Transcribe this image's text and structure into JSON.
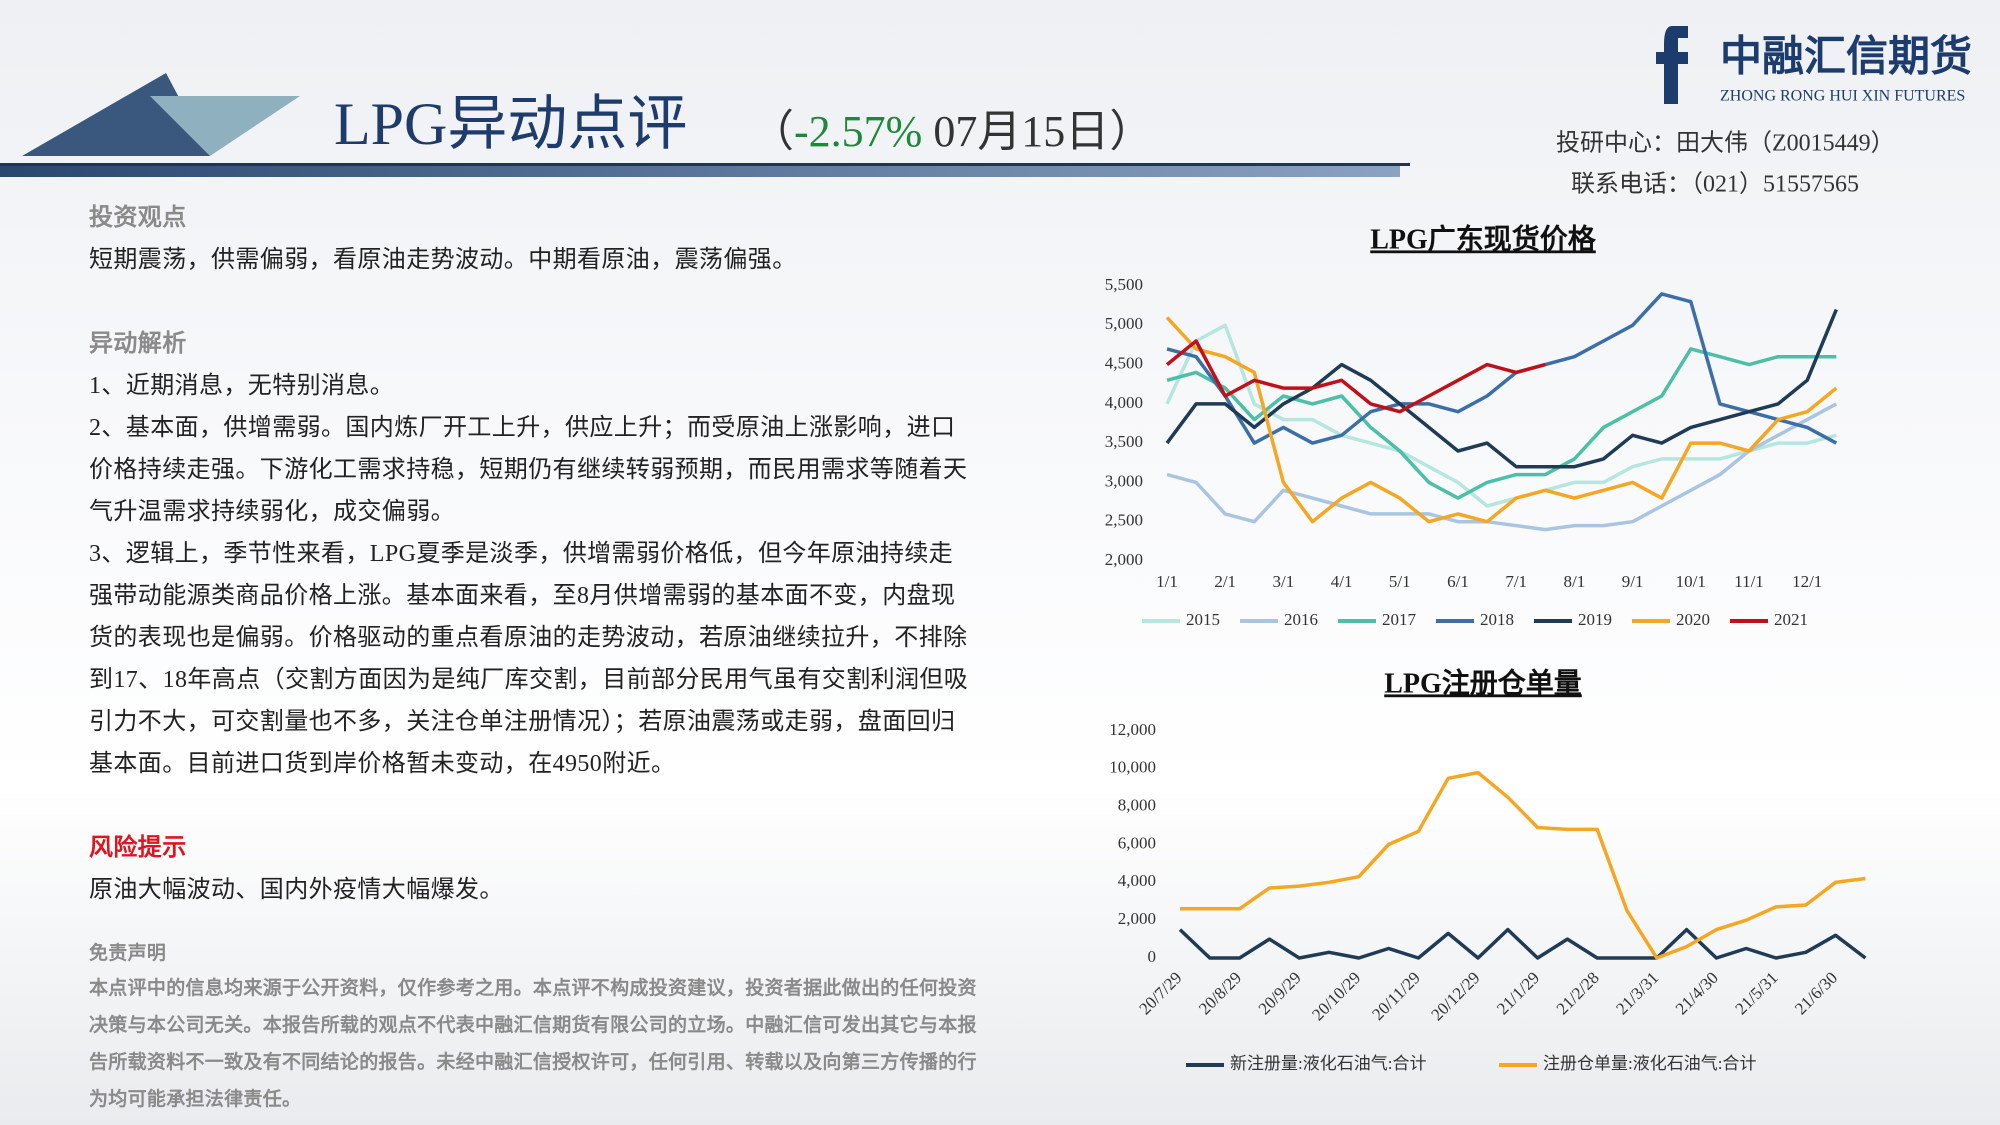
{
  "header": {
    "title": "LPG异动点评",
    "subtitle_parts": [
      "（",
      "-2.57%",
      " 07月15日",
      "）"
    ],
    "analyst": "投研中心：田大伟（Z0015449）",
    "phone": "联系电话：（021）51557565"
  },
  "logo": {
    "name": "中融汇信期货",
    "english": "ZHONG RONG HUI XIN FUTURES"
  },
  "sections": [
    {
      "heading": "投资观点",
      "paragraphs": [
        "短期震荡，供需偏弱，看原油走势波动。中期看原油，震荡偏强。"
      ]
    },
    {
      "heading": "异动解析",
      "paragraphs": [
        "1、近期消息，无特别消息。",
        "2、基本面，供增需弱。国内炼厂开工上升，供应上升；而受原油上涨影响，进口价格持续走强。下游化工需求持稳，短期仍有继续转弱预期，而民用需求等随着天气升温需求持续弱化，成交偏弱。",
        "3、逻辑上，季节性来看，LPG夏季是淡季，供增需弱价格低，但今年原油持续走强带动能源类商品价格上涨。基本面来看，至8月供增需弱的基本面不变，内盘现货的表现也是偏弱。价格驱动的重点看原油的走势波动，若原油继续拉升，不排除到17、18年高点（交割方面因为是纯厂库交割，目前部分民用气虽有交割利润但吸引力不大，可交割量也不多，关注仓单注册情况）；若原油震荡或走弱，盘面回归基本面。目前进口货到岸价格暂未变动，在4950附近。"
      ]
    },
    {
      "heading": "风险提示",
      "paragraphs": [
        "原油大幅波动、国内外疫情大幅爆发。"
      ]
    }
  ],
  "disclaimer": {
    "heading": "免责声明",
    "text": "本点评中的信息均来源于公开资料，仅作参考之用。本点评不构成投资建议，投资者据此做出的任何投资决策与本公司无关。本报告所载的观点不代表中融汇信期货有限公司的立场。中融汇信可发出其它与本报告所载资料不一致及有不同结论的报告。未经中融汇信授权许可，任何引用、转载以及向第三方传播的行为均可能承担法律责任。"
  },
  "chart_data": [
    {
      "type": "line",
      "title": "LPG广东现货价格",
      "categories": [
        "1/1",
        null,
        "2/1",
        null,
        "3/1",
        null,
        "4/1",
        null,
        "5/1",
        null,
        "6/1",
        null,
        "7/1",
        null,
        "8/1",
        null,
        "9/1",
        null,
        "10/1",
        null,
        "11/1",
        null,
        "12/1",
        null
      ],
      "ylim": [
        2000,
        5500
      ],
      "yticks": [
        {
          "value": 2000,
          "label": "2,000"
        },
        {
          "value": 2500,
          "label": "2,500"
        },
        {
          "value": 3000,
          "label": "3,000"
        },
        {
          "value": 3500,
          "label": "3,500"
        },
        {
          "value": 4000,
          "label": "4,000"
        },
        {
          "value": 4500,
          "label": "4,500"
        },
        {
          "value": 5000,
          "label": "5,000"
        },
        {
          "value": 5500,
          "label": "5,500"
        }
      ],
      "series": [
        {
          "name": "2015",
          "color": "#b5e6df",
          "values": [
            4000,
            4800,
            5000,
            4000,
            3800,
            3800,
            3600,
            3500,
            3400,
            3200,
            3000,
            2700,
            2800,
            2900,
            3000,
            3000,
            3200,
            3300,
            3300,
            3300,
            3400,
            3500,
            3500,
            3600
          ]
        },
        {
          "name": "2016",
          "color": "#a9c5e2",
          "values": [
            3100,
            3000,
            2600,
            2500,
            2900,
            2800,
            2700,
            2600,
            2600,
            2600,
            2500,
            2500,
            2450,
            2400,
            2450,
            2450,
            2500,
            2700,
            2900,
            3100,
            3400,
            3600,
            3800,
            4000
          ]
        },
        {
          "name": "2017",
          "color": "#4dbfa6",
          "values": [
            4300,
            4400,
            4200,
            3800,
            4100,
            4000,
            4100,
            3700,
            3400,
            3000,
            2800,
            3000,
            3100,
            3100,
            3300,
            3700,
            3900,
            4100,
            4700,
            4600,
            4500,
            4600,
            4600,
            4600
          ]
        },
        {
          "name": "2018",
          "color": "#3c6ea8",
          "values": [
            4700,
            4600,
            4100,
            3500,
            3700,
            3500,
            3600,
            3900,
            4000,
            4000,
            3900,
            4100,
            4400,
            4500,
            4600,
            4800,
            5000,
            5400,
            5300,
            4000,
            3900,
            3800,
            3700,
            3500
          ]
        },
        {
          "name": "2019",
          "color": "#1f3b55",
          "values": [
            3500,
            4000,
            4000,
            3700,
            4000,
            4200,
            4500,
            4300,
            4000,
            3700,
            3400,
            3500,
            3200,
            3200,
            3200,
            3300,
            3600,
            3500,
            3700,
            3800,
            3900,
            4000,
            4300,
            5200
          ]
        },
        {
          "name": "2020",
          "color": "#f5a623",
          "values": [
            5100,
            4700,
            4600,
            4400,
            3000,
            2500,
            2800,
            3000,
            2800,
            2500,
            2600,
            2500,
            2800,
            2900,
            2800,
            2900,
            3000,
            2800,
            3500,
            3500,
            3400,
            3800,
            3900,
            4200
          ]
        },
        {
          "name": "2021",
          "color": "#c0111b",
          "values": [
            4500,
            4800,
            4100,
            4300,
            4200,
            4200,
            4300,
            4000,
            3900,
            4100,
            4300,
            4500,
            4400,
            4500,
            null,
            null,
            null,
            null,
            null,
            null,
            null,
            null,
            null,
            null
          ]
        }
      ]
    },
    {
      "type": "line",
      "title": "LPG注册仓单量",
      "categories": [
        "20/7/29",
        null,
        "20/8/29",
        null,
        "20/9/29",
        null,
        "20/10/29",
        null,
        "20/11/29",
        null,
        "20/12/29",
        null,
        "21/1/29",
        null,
        "21/2/28",
        null,
        "21/3/31",
        null,
        "21/4/30",
        null,
        "21/5/31",
        null,
        "21/6/30",
        null
      ],
      "ylim": [
        0,
        12000
      ],
      "yticks": [
        0,
        {
          "value": 2000,
          "label": "2,000"
        },
        {
          "value": 4000,
          "label": "4,000"
        },
        {
          "value": 6000,
          "label": "6,000"
        },
        {
          "value": 8000,
          "label": "8,000"
        },
        {
          "value": 10000,
          "label": "10,000"
        },
        {
          "value": 12000,
          "label": "12,000"
        }
      ],
      "series": [
        {
          "name": "新注册量:液化石油气:合计",
          "color": "#1f3b55",
          "values": [
            1500,
            0,
            0,
            1000,
            0,
            300,
            0,
            500,
            0,
            1300,
            0,
            1500,
            0,
            1000,
            0,
            0,
            0,
            1500,
            0,
            500,
            0,
            300,
            1200,
            0
          ]
        },
        {
          "name": "注册仓单量:液化石油气:合计",
          "color": "#f5a623",
          "values": [
            2600,
            2600,
            2600,
            3700,
            3800,
            4000,
            4300,
            6000,
            6700,
            9500,
            9800,
            8500,
            6900,
            6800,
            6800,
            2500,
            0,
            600,
            1500,
            2000,
            2700,
            2800,
            4000,
            4200
          ]
        }
      ]
    }
  ]
}
